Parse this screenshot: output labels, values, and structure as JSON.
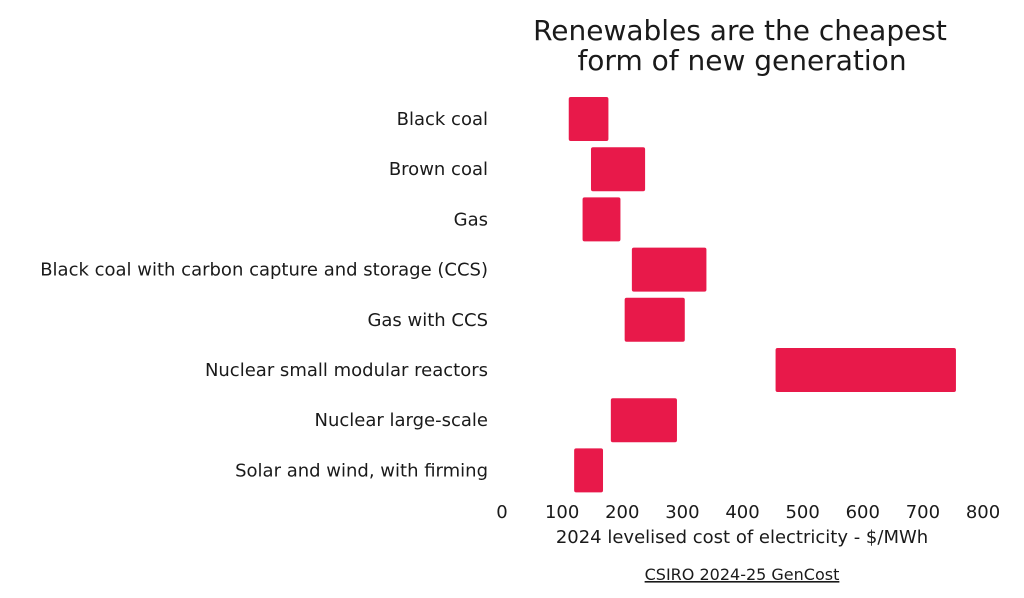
{
  "chart_data": {
    "type": "bar",
    "orientation": "horizontal",
    "title_lines": [
      "Renewables are the cheapest",
      "form of new generation"
    ],
    "categories": [
      "Black coal",
      "Brown coal",
      "Gas",
      "Black coal with carbon capture and storage (CCS)",
      "Gas with CCS",
      "Nuclear small modular reactors",
      "Nuclear large-scale",
      "Solar and wind, with firming"
    ],
    "ranges": [
      [
        111,
        177
      ],
      [
        148,
        238
      ],
      [
        134,
        197
      ],
      [
        216,
        340
      ],
      [
        204,
        304
      ],
      [
        455,
        755
      ],
      [
        181,
        291
      ],
      [
        120,
        168
      ]
    ],
    "xlabel": "2024 levelised cost of electricity - $/MWh",
    "xlim": [
      0,
      800
    ],
    "xticks": [
      0,
      100,
      200,
      300,
      400,
      500,
      600,
      700,
      800
    ],
    "grid": false,
    "bar_color": "#e8194a",
    "source": "CSIRO 2024-25 GenCost"
  }
}
